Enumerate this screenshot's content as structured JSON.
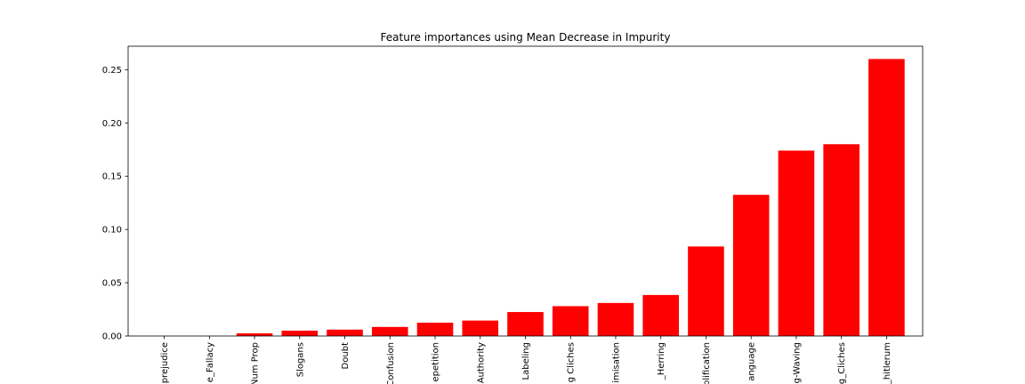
{
  "chart_data": {
    "type": "bar",
    "title": "Feature importances using Mean Decrease in Impurity",
    "xlabel": "",
    "ylabel": "",
    "categories": [
      "prejudice",
      "e_Fallacy",
      "Num Prop",
      "Slogans",
      "Doubt",
      "Confusion",
      "epetition",
      "Authority",
      "Labeling",
      "g Cliches",
      "imisation",
      "_Herring",
      "plification",
      "anguage",
      "g-Waving",
      "g_Cliches",
      "_hitlerum"
    ],
    "values": [
      0.0,
      0.0,
      0.0025,
      0.005,
      0.006,
      0.0085,
      0.0125,
      0.0145,
      0.0225,
      0.028,
      0.031,
      0.0385,
      0.084,
      0.1325,
      0.174,
      0.18,
      0.26
    ],
    "ylim": [
      0,
      0.272
    ],
    "yticks": [
      0.0,
      0.05,
      0.1,
      0.15,
      0.2,
      0.25
    ],
    "ytick_labels": [
      "0.00",
      "0.05",
      "0.10",
      "0.15",
      "0.20",
      "0.25"
    ],
    "bar_color": "#ff0000",
    "grid": false
  }
}
